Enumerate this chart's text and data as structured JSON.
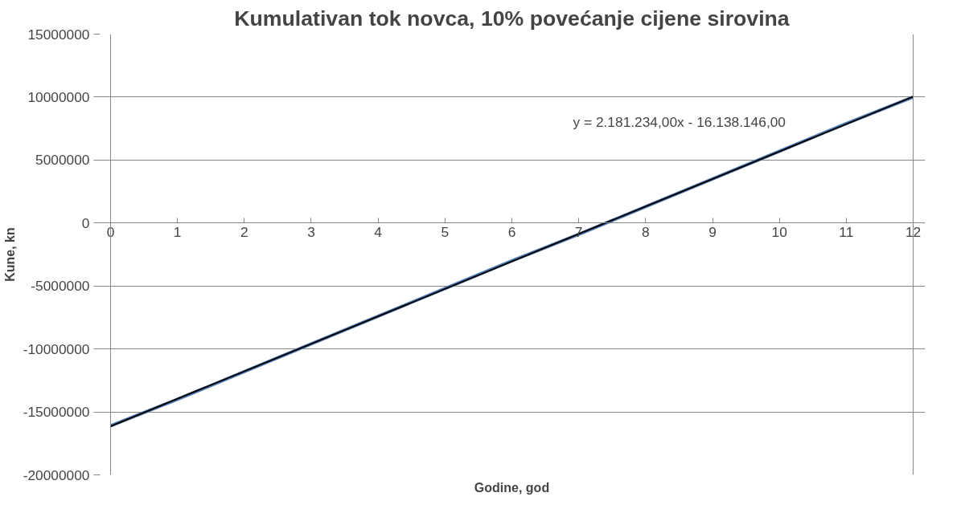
{
  "chart_data": {
    "type": "line",
    "title": "Kumulativan tok novca, 10% povećanje cijene sirovina",
    "xlabel": "Godine, god",
    "ylabel": "Kune, kn",
    "x": [
      0,
      1,
      2,
      3,
      4,
      5,
      6,
      7,
      8,
      9,
      10,
      11,
      12
    ],
    "series": [
      {
        "color": "#4f81bd",
        "values": [
          -16100000,
          -14000000,
          -11800000,
          -9600000,
          -7400000,
          -5200000,
          -3000000,
          -900000,
          1300000,
          3500000,
          5700000,
          7900000,
          10000000
        ]
      },
      {
        "type": "line",
        "color": "#000000",
        "x": [
          0,
          12
        ],
        "values": [
          -16140000,
          10040000
        ]
      }
    ],
    "annotations": [
      "y = 2.181.234,00x - 16.138.146,00"
    ],
    "xlim": [
      0,
      12
    ],
    "xticks": [
      0,
      1,
      2,
      3,
      4,
      5,
      6,
      7,
      8,
      9,
      10,
      11,
      12
    ],
    "ylim": [
      -20000000,
      15000000
    ],
    "yticks": [
      -20000000,
      -15000000,
      -10000000,
      -5000000,
      0,
      5000000,
      10000000,
      15000000
    ],
    "grid": "y",
    "marker": "none",
    "line_style": "solid"
  }
}
